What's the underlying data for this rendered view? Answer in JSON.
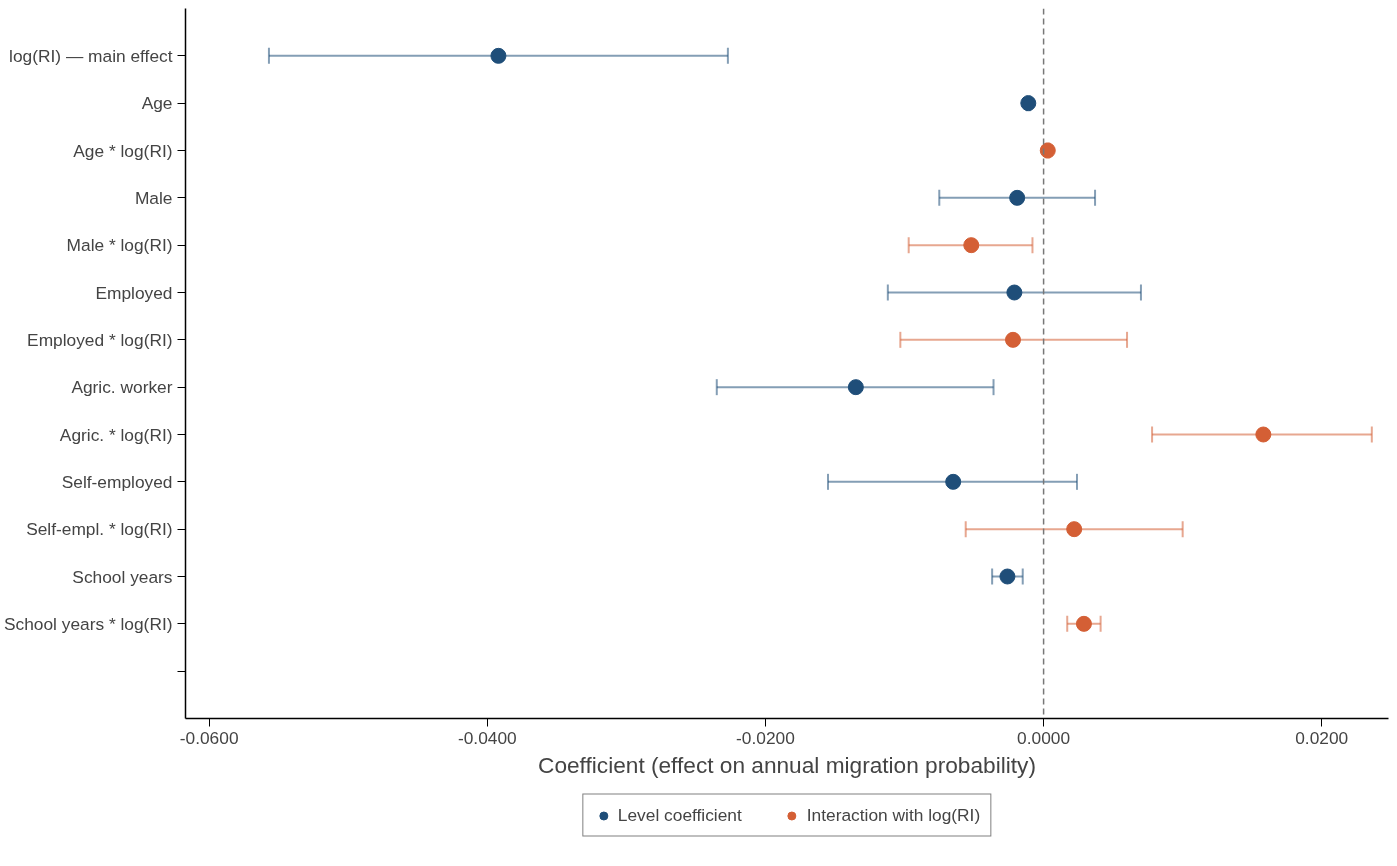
{
  "chart_data": {
    "type": "scatter",
    "orientation": "horizontal",
    "xlabel": "Coefficient (effect on annual migration probability)",
    "categories": [
      "log(RI) — main effect",
      "Age",
      "Age * log(RI)",
      "Male",
      "Male * log(RI)",
      "Employed",
      "Employed * log(RI)",
      "Agric. worker",
      "Agric. * log(RI)",
      "Self-employed",
      "Self-empl. * log(RI)",
      "School years",
      "School years * log(RI)",
      null
    ],
    "series": [
      {
        "name": "Level coefficient",
        "color": "#1f4e79",
        "values": [
          -0.0392,
          -0.0011,
          null,
          -0.0019,
          null,
          -0.0021,
          null,
          -0.0135,
          null,
          -0.0065,
          null,
          -0.0026,
          null,
          null
        ],
        "errors": [
          [
            -0.0557,
            -0.0227
          ],
          [
            -0.0012,
            -0.001
          ],
          null,
          [
            -0.0075,
            0.0037
          ],
          null,
          [
            -0.0112,
            0.007
          ],
          null,
          [
            -0.0235,
            -0.0036
          ],
          null,
          [
            -0.0155,
            0.0024
          ],
          null,
          [
            -0.0037,
            -0.0015
          ],
          null,
          null
        ]
      },
      {
        "name": "Interaction with log(RI)",
        "color": "#d45f35",
        "values": [
          null,
          null,
          0.0003,
          null,
          -0.0052,
          null,
          -0.0022,
          null,
          0.0158,
          null,
          0.0022,
          null,
          0.0029,
          null
        ],
        "errors": [
          null,
          null,
          [
            0.0002,
            0.0004
          ],
          null,
          [
            -0.0097,
            -0.0008
          ],
          null,
          [
            -0.0103,
            0.006
          ],
          null,
          [
            0.0078,
            0.0236
          ],
          null,
          [
            -0.0056,
            0.01
          ],
          null,
          [
            0.0017,
            0.0041
          ],
          null
        ]
      }
    ],
    "xlim": [
      -0.0617,
      0.0248
    ],
    "xticks": [
      {
        "value": -0.06,
        "label": "-0.0600"
      },
      {
        "value": -0.04,
        "label": "-0.0400"
      },
      {
        "value": -0.02,
        "label": "-0.0200"
      },
      {
        "value": 0,
        "label": "0.0000"
      },
      {
        "value": 0.02,
        "label": "0.0200"
      }
    ],
    "ref_lines": [
      {
        "axis": "x",
        "value": 0,
        "color": "#777777",
        "line_style": "dashed"
      }
    ],
    "grid": false,
    "legend": "bottom",
    "marker": "circle"
  }
}
